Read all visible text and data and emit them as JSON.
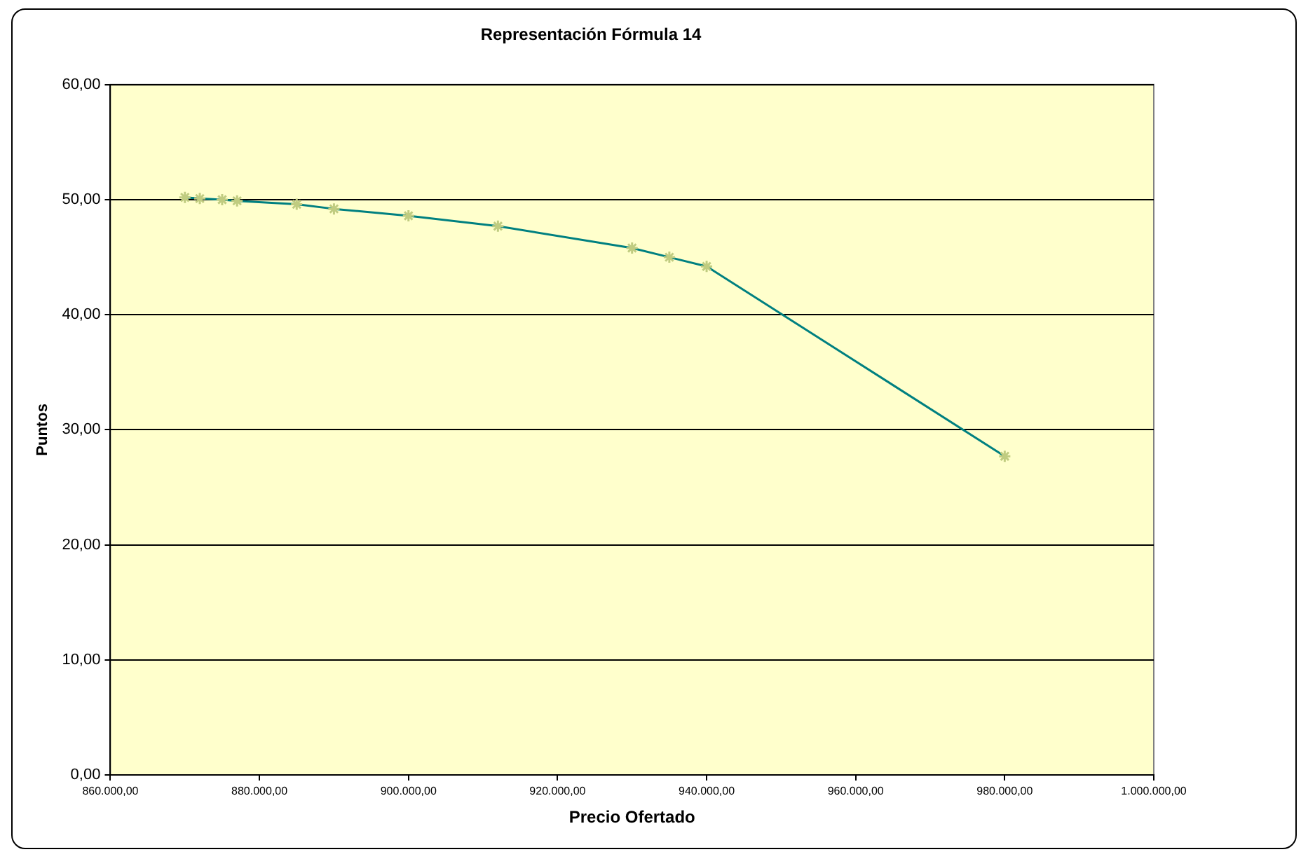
{
  "chart_data": {
    "type": "line",
    "title": "Representación Fórmula 14",
    "xlabel": "Precio Ofertado",
    "ylabel": "Puntos",
    "x": [
      870000,
      872000,
      875000,
      877000,
      885000,
      890000,
      900000,
      912000,
      930000,
      935000,
      940000,
      980000
    ],
    "series": [
      {
        "color": "#008080",
        "values": [
          50.2,
          50.1,
          50.0,
          49.9,
          49.6,
          49.2,
          48.6,
          47.7,
          45.8,
          45.0,
          44.2,
          27.7
        ]
      }
    ],
    "marker": "cross",
    "line_style": "solid",
    "grid": "y",
    "legend": false,
    "xlim": [
      860000,
      1000000
    ],
    "xticks": [
      {
        "value": 860000,
        "label": "860.000,00"
      },
      {
        "value": 880000,
        "label": "880.000,00"
      },
      {
        "value": 900000,
        "label": "900.000,00"
      },
      {
        "value": 920000,
        "label": "920.000,00"
      },
      {
        "value": 940000,
        "label": "940.000,00"
      },
      {
        "value": 960000,
        "label": "960.000,00"
      },
      {
        "value": 980000,
        "label": "980.000,00"
      },
      {
        "value": 1000000,
        "label": "1.000.000,00"
      }
    ],
    "ylim": [
      0,
      60
    ],
    "yticks": [
      {
        "value": 0,
        "label": "0,00"
      },
      {
        "value": 10,
        "label": "10,00"
      },
      {
        "value": 20,
        "label": "20,00"
      },
      {
        "value": 30,
        "label": "30,00"
      },
      {
        "value": 40,
        "label": "40,00"
      },
      {
        "value": 50,
        "label": "50,00"
      },
      {
        "value": 60,
        "label": "60,00"
      }
    ]
  }
}
